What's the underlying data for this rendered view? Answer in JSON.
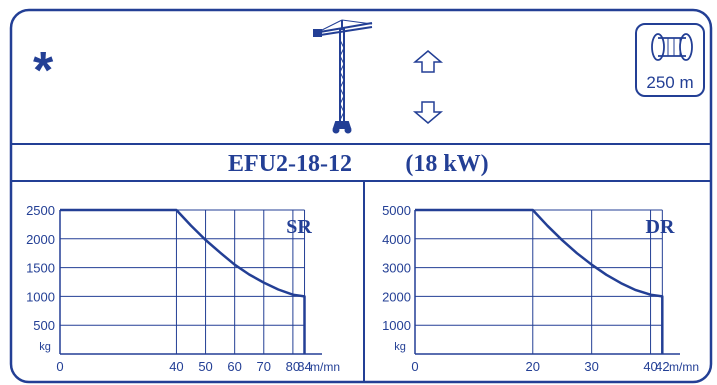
{
  "header": {
    "asterisk": "*",
    "crane_icon": "tower-crane-icon",
    "up_arrow_icon": "up-arrow-icon",
    "down_arrow_icon": "down-arrow-icon",
    "cable_drum_icon": "cable-drum-icon",
    "cable_length": "250 m"
  },
  "title": {
    "model": "EFU2-18-12",
    "power": "(18 kW)"
  },
  "colors": {
    "ink": "#233f95",
    "background": "#ffffff"
  },
  "chart_data": [
    {
      "type": "line",
      "mode_label": "SR",
      "ylabel": "kg",
      "xlabel": "m/mn",
      "x_ticks": [
        0,
        40,
        50,
        60,
        70,
        80,
        84
      ],
      "x_tick_labels": [
        "0",
        "40",
        "50",
        "60",
        "70",
        "80",
        "84"
      ],
      "y_ticks": [
        500,
        1000,
        1500,
        2000,
        2500
      ],
      "y_tick_labels": [
        "500",
        "1000",
        "1500",
        "2000",
        "2500"
      ],
      "xlim": [
        0,
        90
      ],
      "ylim": [
        0,
        2500
      ],
      "grid": true,
      "series": [
        {
          "x": [
            0,
            40,
            45,
            50,
            55,
            60,
            65,
            70,
            75,
            80,
            84,
            84
          ],
          "y": [
            2500,
            2500,
            2230,
            1980,
            1760,
            1550,
            1380,
            1240,
            1120,
            1030,
            1000,
            0
          ]
        }
      ]
    },
    {
      "type": "line",
      "mode_label": "DR",
      "ylabel": "kg",
      "xlabel": "m/mn",
      "x_ticks": [
        0,
        20,
        30,
        40,
        42
      ],
      "x_tick_labels": [
        "0",
        "20",
        "30",
        "40",
        "42"
      ],
      "y_ticks": [
        1000,
        2000,
        3000,
        4000,
        5000
      ],
      "y_tick_labels": [
        "1000",
        "2000",
        "3000",
        "4000",
        "5000"
      ],
      "xlim": [
        0,
        45
      ],
      "ylim": [
        0,
        5000
      ],
      "grid": true,
      "series": [
        {
          "x": [
            0,
            20,
            22.5,
            25,
            27.5,
            30,
            32.5,
            35,
            37.5,
            40,
            42,
            42
          ],
          "y": [
            5000,
            5000,
            4450,
            3950,
            3500,
            3100,
            2750,
            2460,
            2220,
            2060,
            2000,
            0
          ]
        }
      ]
    }
  ]
}
